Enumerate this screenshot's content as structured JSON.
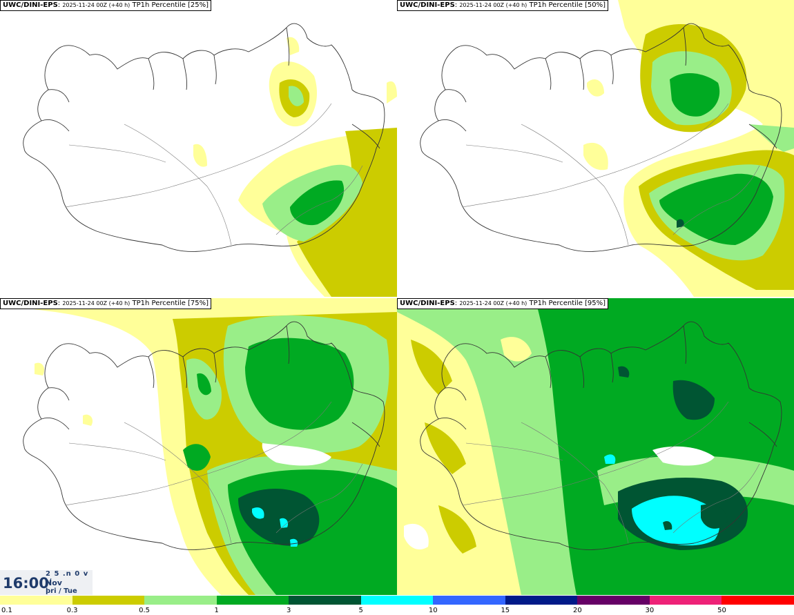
{
  "panels": [
    {
      "model": "UWC/DINI-EPS",
      "run": "2025-11-24 00Z (+40 h)",
      "field": "TP1h Percentile [25%]"
    },
    {
      "model": "UWC/DINI-EPS",
      "run": "2025-11-24 00Z (+40 h)",
      "field": "TP1h Percentile [50%]"
    },
    {
      "model": "UWC/DINI-EPS",
      "run": "2025-11-24 00Z (+40 h)",
      "field": "TP1h Percentile [75%]"
    },
    {
      "model": "UWC/DINI-EPS",
      "run": "2025-11-24 00Z (+40 h)",
      "field": "TP1h Percentile [95%]"
    }
  ],
  "valid_time": {
    "clock": "16:00",
    "line1": "2 5 .n 0 v ./",
    "month": "Nov",
    "weekday": "þri / Tue"
  },
  "legend": {
    "colors": [
      "#ffff99",
      "#cccc00",
      "#99ee88",
      "#00aa22",
      "#005533",
      "#00ffff",
      "#3366ff",
      "#001a88",
      "#660066",
      "#ee2277",
      "#ff0000"
    ],
    "labels": [
      "0.1",
      "0.3",
      "0.5",
      "1",
      "3",
      "5",
      "10",
      "15",
      "20",
      "30",
      "50"
    ]
  }
}
